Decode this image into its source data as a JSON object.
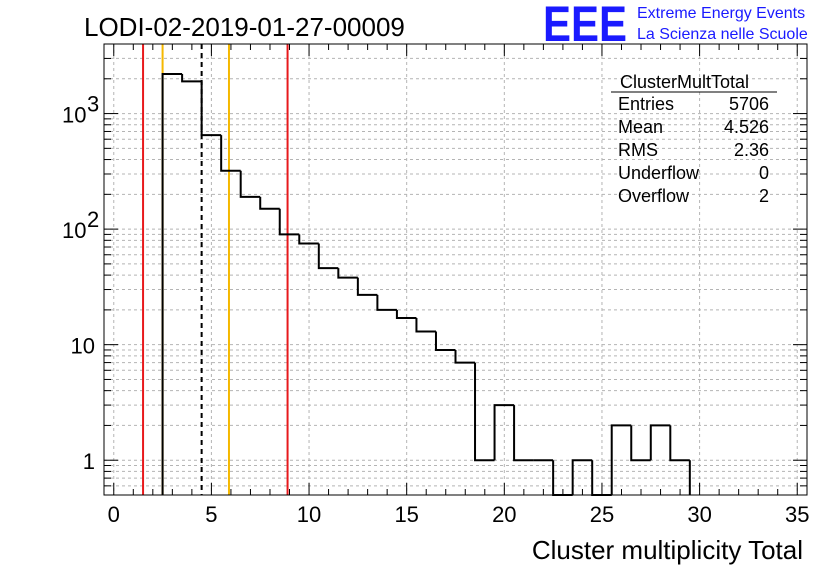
{
  "chart_data": {
    "type": "bar",
    "title": "LODI-02-2019-01-27-00009",
    "xlabel": "Cluster multiplicity Total",
    "ylabel": "",
    "xlim": [
      -0.5,
      35.5
    ],
    "ylim": [
      0.5,
      4000
    ],
    "y_scale": "log",
    "grid": true,
    "bin_width": 1,
    "bins": [
      {
        "x": 3,
        "y": 2200
      },
      {
        "x": 4,
        "y": 1900
      },
      {
        "x": 5,
        "y": 650
      },
      {
        "x": 6,
        "y": 320
      },
      {
        "x": 7,
        "y": 190
      },
      {
        "x": 8,
        "y": 150
      },
      {
        "x": 9,
        "y": 90
      },
      {
        "x": 10,
        "y": 75
      },
      {
        "x": 11,
        "y": 46
      },
      {
        "x": 12,
        "y": 38
      },
      {
        "x": 13,
        "y": 27
      },
      {
        "x": 14,
        "y": 20
      },
      {
        "x": 15,
        "y": 17
      },
      {
        "x": 16,
        "y": 13
      },
      {
        "x": 17,
        "y": 9
      },
      {
        "x": 18,
        "y": 7
      },
      {
        "x": 19,
        "y": 1
      },
      {
        "x": 20,
        "y": 3
      },
      {
        "x": 21,
        "y": 1
      },
      {
        "x": 22,
        "y": 1
      },
      {
        "x": 23,
        "y": 0
      },
      {
        "x": 24,
        "y": 1
      },
      {
        "x": 25,
        "y": 0
      },
      {
        "x": 26,
        "y": 2
      },
      {
        "x": 27,
        "y": 1
      },
      {
        "x": 28,
        "y": 2
      },
      {
        "x": 29,
        "y": 1
      }
    ],
    "x_ticks": [
      0,
      5,
      10,
      15,
      20,
      25,
      30,
      35
    ],
    "x_tick_labels": [
      "0",
      "5",
      "10",
      "15",
      "20",
      "25",
      "30",
      "35"
    ],
    "y_ticks": [
      {
        "value": 1,
        "base": "1",
        "exp": ""
      },
      {
        "value": 10,
        "base": "10",
        "exp": ""
      },
      {
        "value": 100,
        "base": "10",
        "exp": "2"
      },
      {
        "value": 1000,
        "base": "10",
        "exp": "3"
      }
    ],
    "vertical_lines": [
      {
        "x": 1.5,
        "color": "#e8191c",
        "style": "solid"
      },
      {
        "x": 2.5,
        "color": "#f5b800",
        "style": "solid"
      },
      {
        "x": 4.5,
        "color": "#000000",
        "style": "dashed"
      },
      {
        "x": 5.9,
        "color": "#f5b800",
        "style": "solid"
      },
      {
        "x": 8.9,
        "color": "#e8191c",
        "style": "solid"
      }
    ],
    "stats_box": {
      "name": "ClusterMultTotal",
      "rows": [
        {
          "label": "Entries",
          "value": "5706"
        },
        {
          "label": "Mean",
          "value": "4.526"
        },
        {
          "label": "RMS",
          "value": "2.36"
        },
        {
          "label": "Underflow",
          "value": "0"
        },
        {
          "label": "Overflow",
          "value": "2"
        }
      ]
    },
    "logo": {
      "text": "EEE",
      "line1": "Extreme Energy Events",
      "line2": "La Scienza nelle Scuole",
      "color": "#1a1aff"
    }
  }
}
